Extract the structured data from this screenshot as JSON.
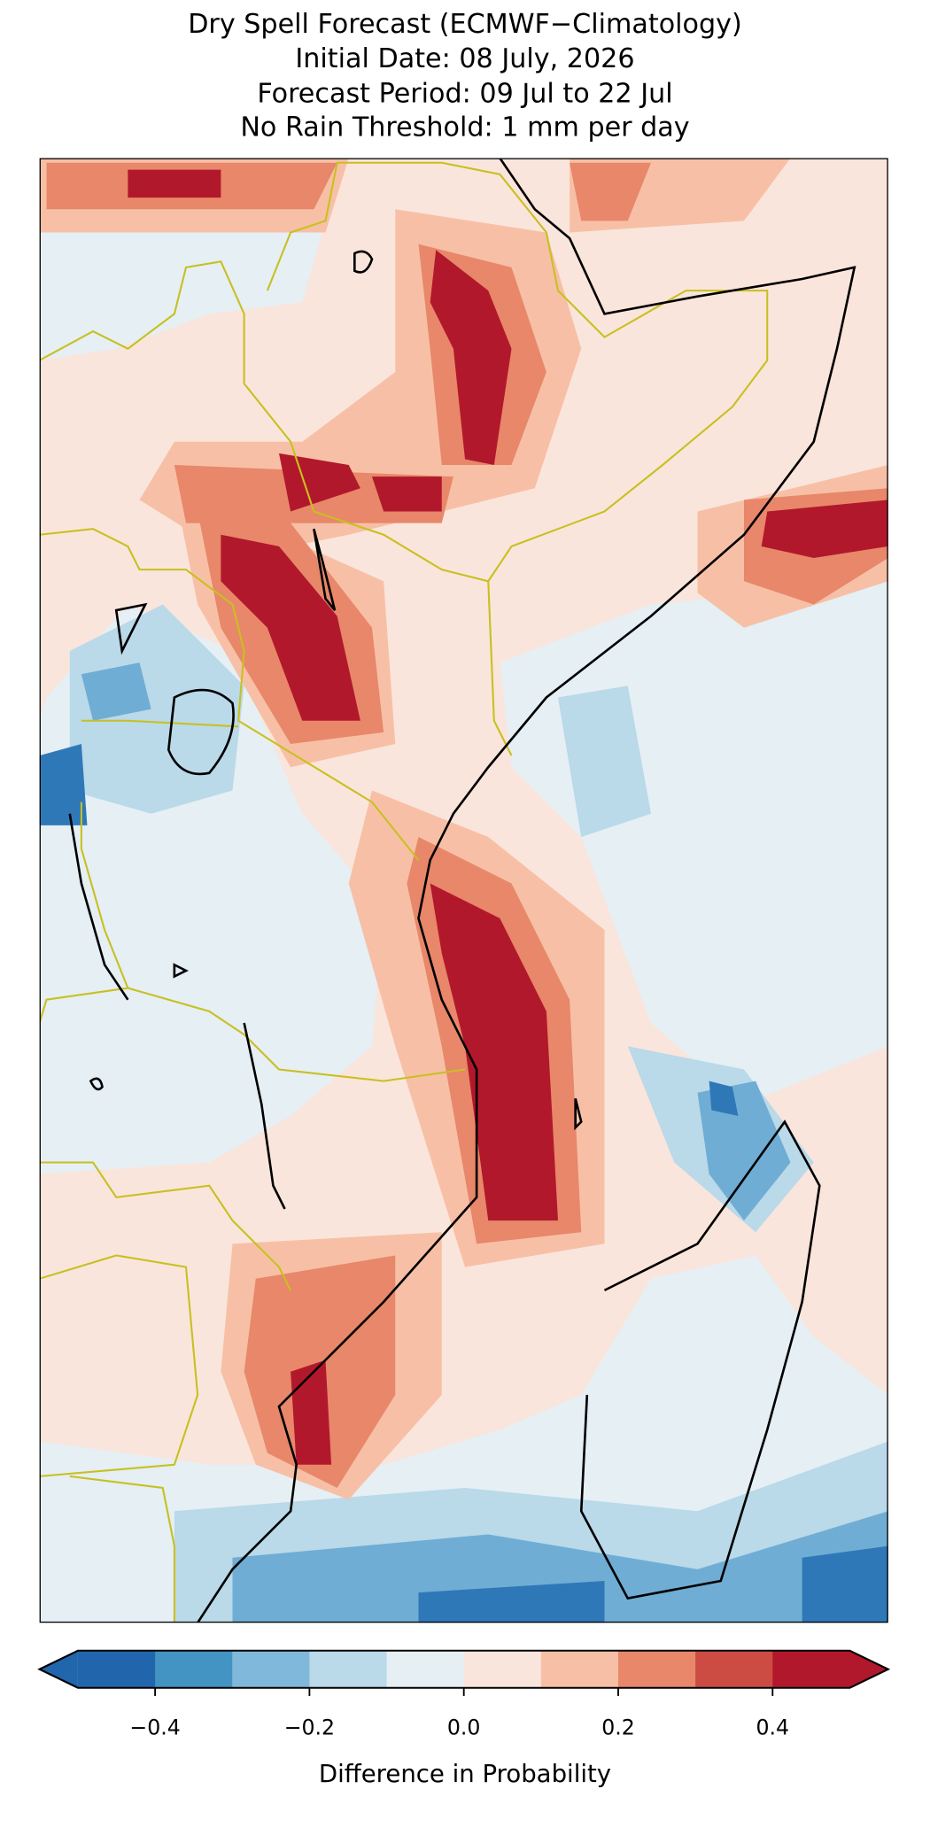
{
  "title": [
    "Dry Spell Forecast (ECMWF−Climatology)",
    "Initial Date: 08 July, 2026",
    "Forecast Period: 09 Jul to 22 Jul",
    "No Rain Threshold: 1 mm per day"
  ],
  "colorbar": {
    "label": "Difference in Probability",
    "lim": [
      -0.5,
      0.5
    ],
    "extend": "both",
    "boundaries": [
      -0.5,
      -0.4,
      -0.3,
      -0.2,
      -0.1,
      0,
      0.1,
      0.2,
      0.3,
      0.4,
      0.5
    ],
    "colors": [
      "#2166ac",
      "#4393c3",
      "#7fb8da",
      "#bad9e9",
      "#e5eff4",
      "#fae5dc",
      "#f7c0a6",
      "#e8876a",
      "#cc4c44",
      "#b2182b"
    ],
    "ticks": [
      {
        "value": -0.4,
        "label": "−0.4"
      },
      {
        "value": -0.2,
        "label": "−0.2"
      },
      {
        "value": 0,
        "label": "0.0"
      },
      0.2,
      0.4
    ]
  }
}
